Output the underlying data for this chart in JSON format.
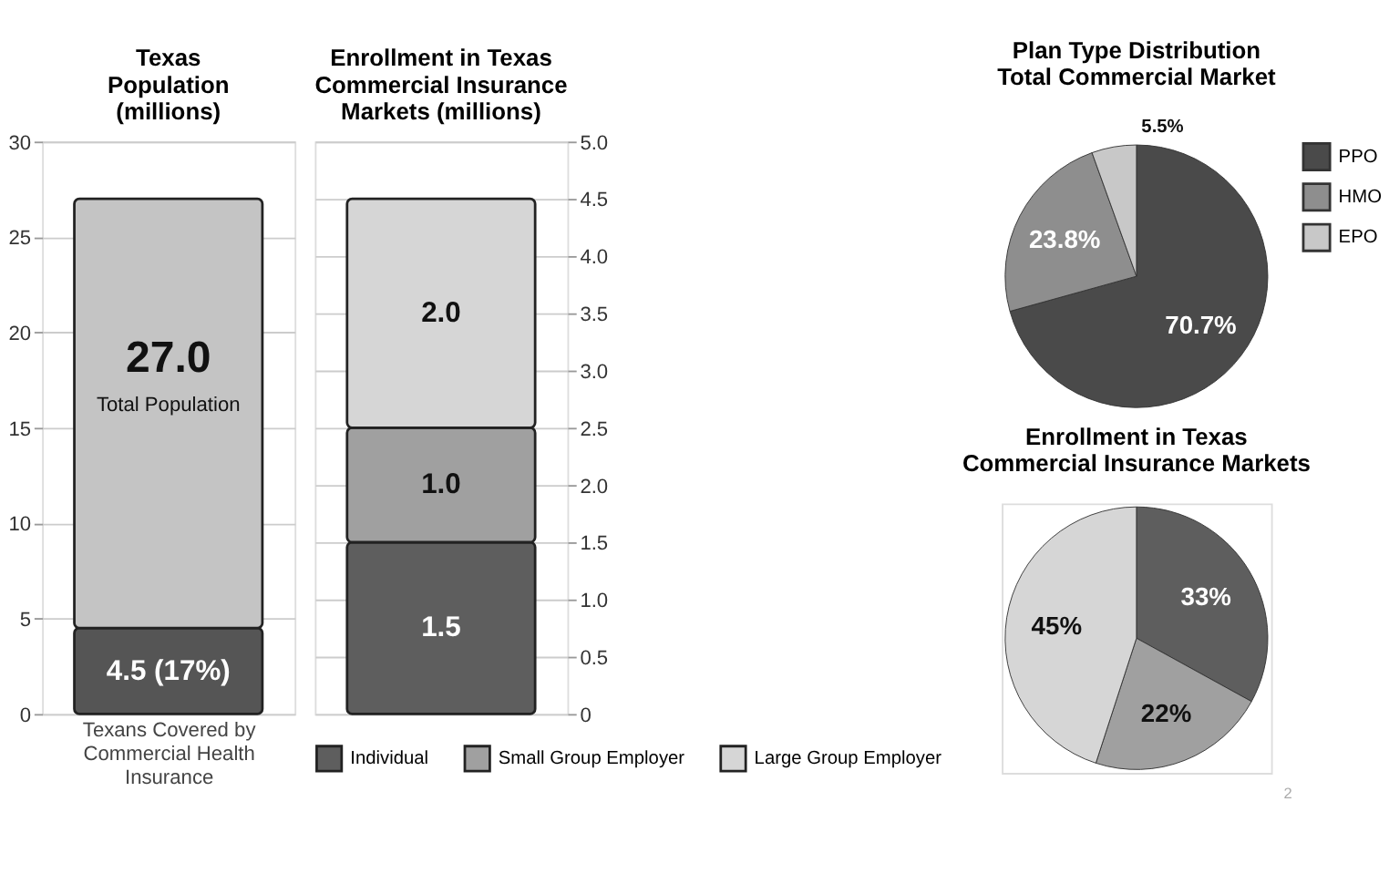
{
  "chart_data": [
    {
      "type": "bar",
      "title": [
        "Texas",
        "Population",
        "(millions)"
      ],
      "categories": [
        null
      ],
      "stacked": true,
      "ylim": [
        0,
        30
      ],
      "yticks": [
        0,
        5,
        10,
        15,
        20,
        25,
        30
      ],
      "grid": "y",
      "series": [
        {
          "color": "#555555",
          "values": [
            4.5
          ],
          "value_labels": [
            "4.5 (17%)"
          ]
        },
        {
          "color": "#c4c4c4",
          "values": [
            22.5
          ]
        }
      ],
      "totals": [
        "27.0"
      ],
      "annotations": [
        "Total Population",
        "Texans Covered by Commercial Health Insurance"
      ]
    },
    {
      "type": "bar",
      "title": [
        "Enrollment in Texas",
        "Commercial Insurance",
        "Markets (millions)"
      ],
      "categories": [
        null
      ],
      "stacked": true,
      "legend": "bottom",
      "grid": "y",
      "ylim": [
        0,
        5
      ],
      "yticks": [
        0,
        0.5,
        {
          "value": 1,
          "label": "1.0"
        },
        1.5,
        {
          "value": 2,
          "label": "2.0"
        },
        2.5,
        {
          "value": 3,
          "label": "3.0"
        },
        3.5,
        {
          "value": 4,
          "label": "4.0"
        },
        4.5,
        {
          "value": 5,
          "label": "5.0"
        }
      ],
      "series": [
        {
          "name": "Individual",
          "color": "#5e5e5e",
          "values": [
            1.5
          ],
          "value_labels": [
            "1.5"
          ]
        },
        {
          "name": "Small Group Employer",
          "color": "#a0a0a0",
          "values": [
            1.0
          ],
          "value_labels": [
            "1.0"
          ]
        },
        {
          "name": "Large Group Employer",
          "color": "#d6d6d6",
          "values": [
            2.0
          ],
          "value_labels": [
            "2.0"
          ]
        }
      ]
    },
    {
      "type": "pie",
      "title": [
        "Plan Type Distribution",
        "Total Commercial Market"
      ],
      "categories": [
        "PPO",
        "HMO",
        "EPO"
      ],
      "values": [
        70.7,
        23.8,
        5.5
      ],
      "colors": [
        "#4a4a4a",
        "#8e8e8e",
        "#c8c8c8"
      ],
      "value_labels": [
        "70.7%",
        "23.8%",
        "5.5%"
      ],
      "legend": "right"
    },
    {
      "type": "pie",
      "title": [
        "Enrollment in Texas",
        "Commercial Insurance Markets"
      ],
      "categories": [
        null,
        null,
        null
      ],
      "values": [
        33,
        22,
        45
      ],
      "colors": [
        "#5e5e5e",
        "#a0a0a0",
        "#d6d6d6"
      ],
      "value_labels": [
        "33%",
        "22%",
        "45%"
      ],
      "annotations": [
        "2"
      ]
    }
  ]
}
